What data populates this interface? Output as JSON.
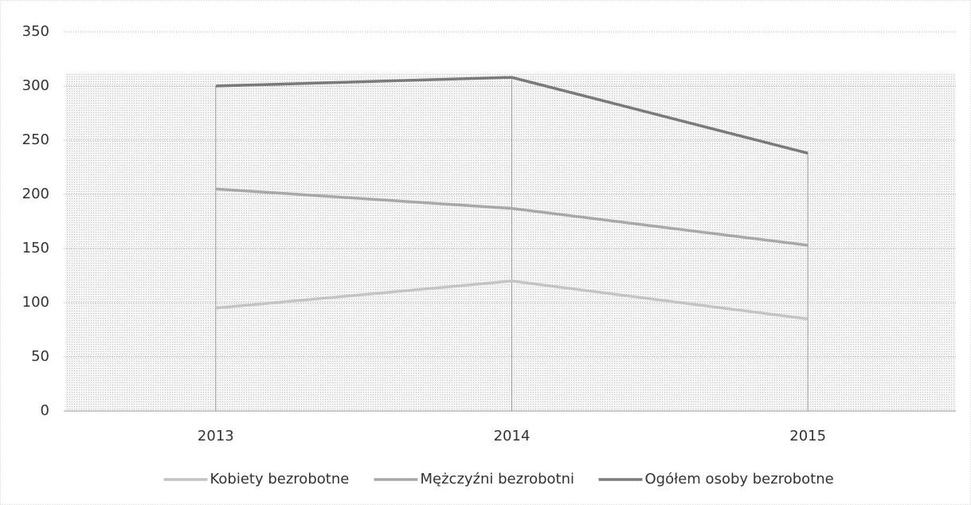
{
  "chart_data": {
    "type": "line",
    "categories": [
      "2013",
      "2014",
      "2015"
    ],
    "series": [
      {
        "name": "Kobiety bezrobotne",
        "color": "#c4c4c4",
        "values": [
          95,
          120,
          85
        ]
      },
      {
        "name": "Mężczyźni bezrobotni",
        "color": "#a8a8a8",
        "values": [
          205,
          187,
          153
        ]
      },
      {
        "name": "Ogółem osoby bezrobotne",
        "color": "#7a7a7a",
        "values": [
          300,
          308,
          238
        ]
      }
    ],
    "ylim": [
      0,
      350
    ],
    "yticks": [
      0,
      50,
      100,
      150,
      200,
      250,
      300,
      350
    ],
    "grid": true,
    "drop_lines": true,
    "legend": "bottom"
  }
}
